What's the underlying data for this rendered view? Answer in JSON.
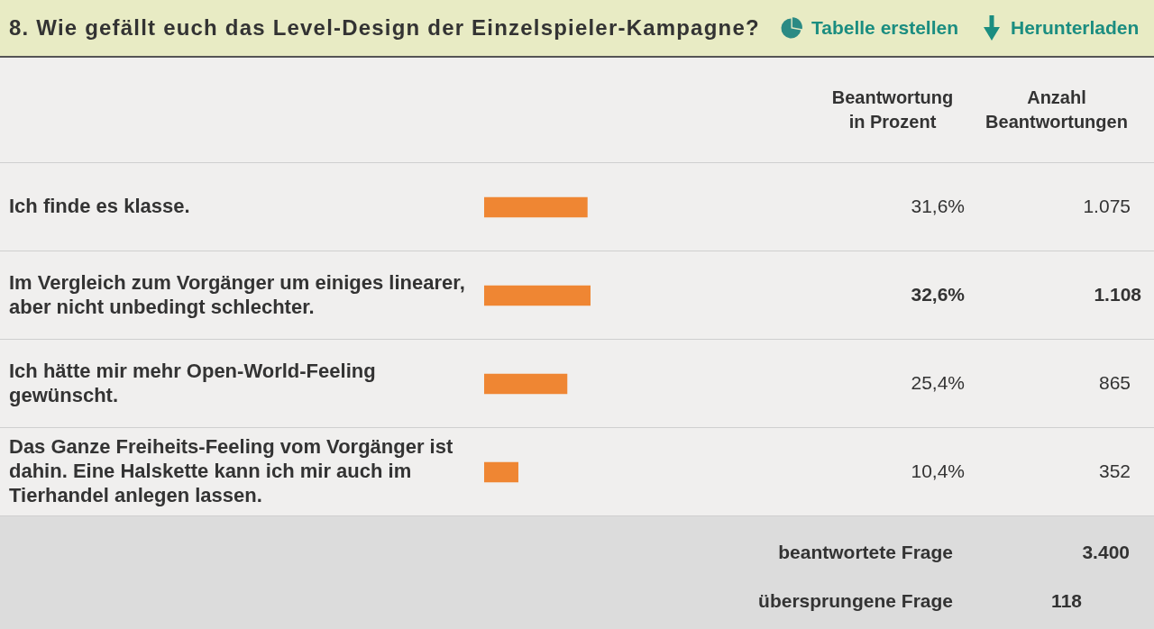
{
  "chart_data": {
    "type": "bar",
    "orientation": "horizontal",
    "title": "8. Wie gefällt euch das Level-Design der Einzelspieler-Kampagne?",
    "categories": [
      "Ich finde es klasse.",
      "Im Vergleich zum Vorgänger um einiges linearer, aber nicht unbedingt schlechter.",
      "Ich hätte mir mehr Open-World-Feeling gewünscht.",
      "Das Ganze Freiheits-Feeling vom Vorgänger ist dahin. Eine Halskette kann ich mir auch im Tierhandel anlegen lassen."
    ],
    "series": [
      {
        "color": "#ef8633",
        "values": [
          31.6,
          32.6,
          25.4,
          10.4
        ],
        "value_labels": [
          "31,6%",
          "32,6%",
          "25,4%",
          "10,4%"
        ]
      }
    ],
    "tick_labels": "y",
    "grid": false,
    "legend": false,
    "annotations": [
      "Tabelle erstellen",
      "Herunterladen",
      "Beantwortung in Prozent",
      "Anzahl Beantwortungen",
      "1.075",
      "1.108",
      "865",
      "352",
      "beantwortete Frage",
      "3.400",
      "übersprungene Frage",
      "118"
    ]
  }
}
